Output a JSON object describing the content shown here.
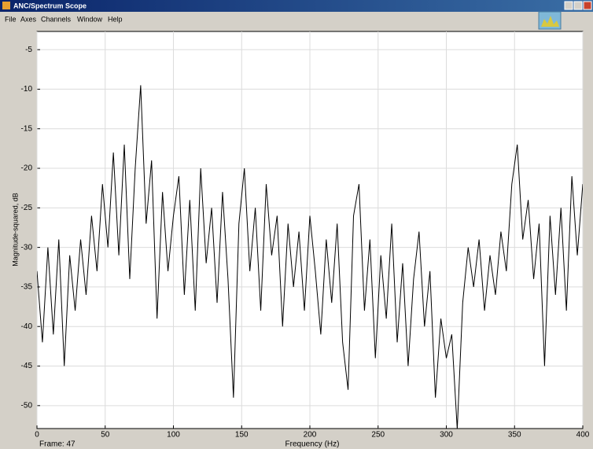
{
  "window": {
    "title": "ANC/Spectrum Scope"
  },
  "menu": [
    "File",
    "Axes",
    "Channels",
    "Window",
    "Help"
  ],
  "chart_data": {
    "type": "line",
    "xlabel": "Frequency (Hz)",
    "ylabel": "Magnitude-squared, dB",
    "annotation": "Frame: 47",
    "color": "#000000",
    "grid": true,
    "xlim": [
      0,
      400
    ],
    "xticks": [
      0,
      50,
      100,
      150,
      200,
      250,
      300,
      350,
      400
    ],
    "ylim": [
      -52.9,
      -2.7
    ],
    "yticks": [
      -50,
      -45,
      -40,
      -35,
      -30,
      -25,
      -20,
      -15,
      -10,
      -5
    ],
    "x": [
      0,
      4,
      8,
      12,
      16,
      20,
      24,
      28,
      32,
      36,
      40,
      44,
      48,
      52,
      56,
      60,
      64,
      68,
      72,
      76,
      80,
      84,
      88,
      92,
      96,
      100,
      104,
      108,
      112,
      116,
      120,
      124,
      128,
      132,
      136,
      140,
      144,
      148,
      152,
      156,
      160,
      164,
      168,
      172,
      176,
      180,
      184,
      188,
      192,
      196,
      200,
      204,
      208,
      212,
      216,
      220,
      224,
      228,
      232,
      236,
      240,
      244,
      248,
      252,
      256,
      260,
      264,
      268,
      272,
      276,
      280,
      284,
      288,
      292,
      296,
      300,
      304,
      308,
      312,
      316,
      320,
      324,
      328,
      332,
      336,
      340,
      344,
      348,
      352,
      356,
      360,
      364,
      368,
      372,
      376,
      380,
      384,
      388,
      392,
      396,
      400
    ],
    "values": [
      -33,
      -42,
      -30,
      -41,
      -29,
      -45,
      -31,
      -38,
      -29,
      -36,
      -26,
      -33,
      -22,
      -30,
      -18,
      -31,
      -17,
      -34,
      -20,
      -9.5,
      -27,
      -19,
      -39,
      -23,
      -33,
      -26,
      -21,
      -36,
      -24,
      -38,
      -20,
      -32,
      -25,
      -37,
      -23,
      -34,
      -49,
      -27,
      -20,
      -33,
      -25,
      -38,
      -22,
      -31,
      -26,
      -40,
      -27,
      -35,
      -28,
      -38,
      -26,
      -33,
      -41,
      -29,
      -37,
      -27,
      -42,
      -48,
      -26,
      -22,
      -38,
      -29,
      -44,
      -31,
      -39,
      -27,
      -42,
      -32,
      -45,
      -34,
      -28,
      -40,
      -33,
      -49,
      -39,
      -44,
      -41,
      -53,
      -37,
      -30,
      -35,
      -29,
      -38,
      -31,
      -36,
      -28,
      -33,
      -22,
      -17,
      -29,
      -24,
      -34,
      -27,
      -45,
      -26,
      -36,
      -25,
      -38,
      -21,
      -31,
      -22
    ]
  }
}
